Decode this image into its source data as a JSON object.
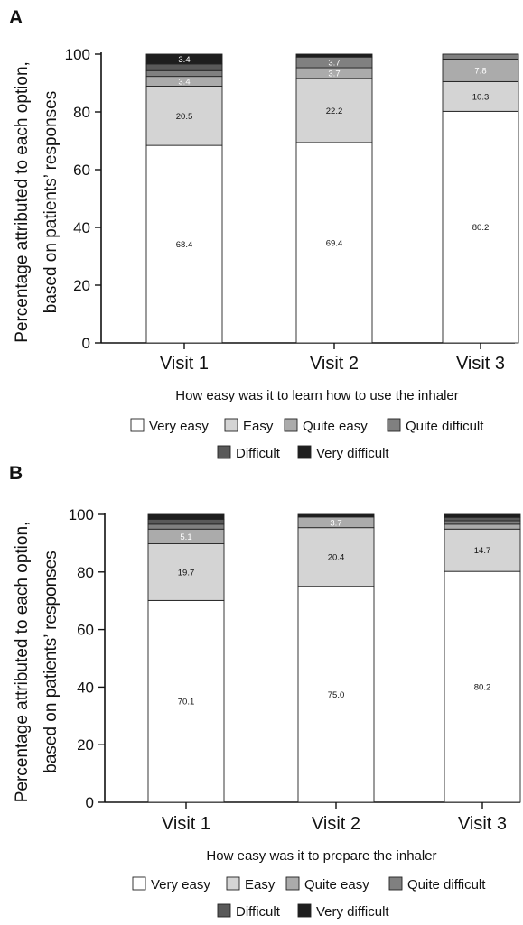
{
  "chart_data": [
    {
      "type": "bar",
      "panel": "A",
      "stacked": true,
      "categories": [
        "Visit 1",
        "Visit 2",
        "Visit 3"
      ],
      "xlabel": "How easy was it to learn how to use the inhaler",
      "ylabel_lines": [
        "Percentage attributed to each option,",
        "based on patients’ responses"
      ],
      "ylim": [
        0,
        100
      ],
      "yticks": [
        "0",
        "20",
        "40",
        "60",
        "80",
        "100"
      ],
      "legend_placement": "bottom",
      "series": [
        {
          "name": "Very easy",
          "color": "#ffffff",
          "values": [
            68.4,
            69.4,
            80.2
          ],
          "labels": [
            "68.4",
            "69.4",
            "80.2"
          ]
        },
        {
          "name": "Easy",
          "color": "#d4d4d4",
          "values": [
            20.5,
            22.2,
            10.3
          ],
          "labels": [
            "20.5",
            "22.2",
            "10.3"
          ]
        },
        {
          "name": "Quite easy",
          "color": "#ababab",
          "values": [
            3.4,
            3.7,
            7.8
          ],
          "labels": [
            "3.4",
            "3.7",
            "7.8"
          ]
        },
        {
          "name": "Quite difficult",
          "color": "#808080",
          "values": [
            2.0,
            3.7,
            1.7
          ],
          "labels": [
            "",
            "3.7",
            ""
          ]
        },
        {
          "name": "Difficult",
          "color": "#595959",
          "values": [
            2.3,
            0.0,
            0.0
          ],
          "labels": [
            "",
            "",
            ""
          ]
        },
        {
          "name": "Very difficult",
          "color": "#1e1e1e",
          "values": [
            3.4,
            1.0,
            0.0
          ],
          "labels": [
            "3.4",
            "",
            ""
          ]
        }
      ]
    },
    {
      "type": "bar",
      "panel": "B",
      "stacked": true,
      "categories": [
        "Visit 1",
        "Visit 2",
        "Visit 3"
      ],
      "xlabel": "How easy was it to prepare the inhaler",
      "ylabel_lines": [
        "Percentage attributed to each option,",
        "based on patients’ responses"
      ],
      "ylim": [
        0,
        100
      ],
      "yticks": [
        "0",
        "20",
        "40",
        "60",
        "80",
        "100"
      ],
      "legend_placement": "bottom",
      "series": [
        {
          "name": "Very easy",
          "color": "#ffffff",
          "values": [
            70.1,
            75.0,
            80.2
          ],
          "labels": [
            "70.1",
            "75.0",
            "80.2"
          ]
        },
        {
          "name": "Easy",
          "color": "#d4d4d4",
          "values": [
            19.7,
            20.4,
            14.7
          ],
          "labels": [
            "19.7",
            "20.4",
            "14.7"
          ]
        },
        {
          "name": "Quite easy",
          "color": "#ababab",
          "values": [
            5.1,
            3.7,
            1.7
          ],
          "labels": [
            "5.1",
            "3.7",
            ""
          ]
        },
        {
          "name": "Quite difficult",
          "color": "#808080",
          "values": [
            1.7,
            0.0,
            1.2
          ],
          "labels": [
            "",
            "",
            ""
          ]
        },
        {
          "name": "Difficult",
          "color": "#595959",
          "values": [
            1.7,
            0.0,
            1.2
          ],
          "labels": [
            "",
            "",
            ""
          ]
        },
        {
          "name": "Very difficult",
          "color": "#1e1e1e",
          "values": [
            1.7,
            0.9,
            1.0
          ],
          "labels": [
            "",
            "",
            ""
          ]
        }
      ]
    }
  ]
}
